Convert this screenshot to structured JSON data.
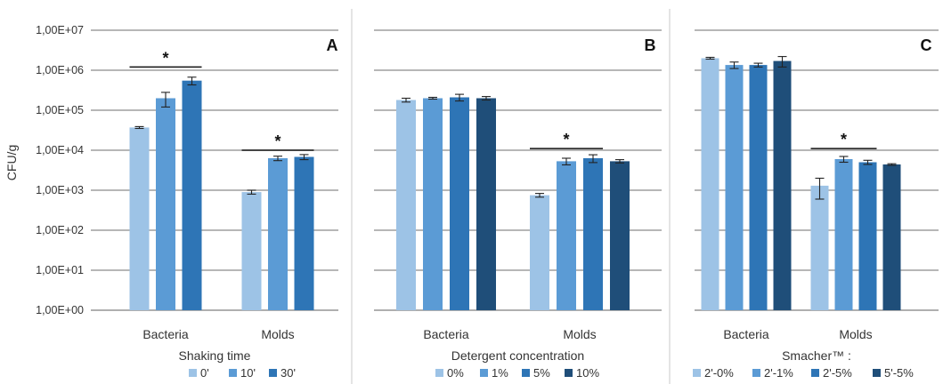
{
  "figure": {
    "ylabel": "CFU/g",
    "y_tick_labels": [
      "1,00E+00",
      "1,00E+01",
      "1,00E+02",
      "1,00E+03",
      "1,00E+04",
      "1,00E+05",
      "1,00E+06",
      "1,00E+07"
    ]
  },
  "chart_data": [
    {
      "type": "bar",
      "panel_label": "A",
      "title": "",
      "xlabel": "",
      "ylabel": "CFU/g",
      "log_y": true,
      "ylim": [
        1,
        10000000
      ],
      "grid": true,
      "categories": [
        "Bacteria",
        "Molds"
      ],
      "legend_title": "Shaking time",
      "legend_placement": "bottom",
      "series": [
        {
          "name": "0'",
          "color": "#9DC3E6",
          "values": [
            37000,
            900
          ],
          "errors": [
            2000,
            100
          ]
        },
        {
          "name": "10'",
          "color": "#5B9BD5",
          "values": [
            200000,
            6300
          ],
          "errors": [
            80000,
            800
          ]
        },
        {
          "name": "30'",
          "color": "#2E75B6",
          "values": [
            550000,
            6800
          ],
          "errors": [
            120000,
            1000
          ]
        }
      ],
      "significance": [
        {
          "category": "Bacteria",
          "label": "*",
          "level": 1200000
        },
        {
          "category": "Molds",
          "label": "*",
          "level": 10000
        }
      ]
    },
    {
      "type": "bar",
      "panel_label": "B",
      "title": "",
      "xlabel": "",
      "ylabel": "",
      "log_y": true,
      "ylim": [
        1,
        10000000
      ],
      "grid": true,
      "categories": [
        "Bacteria",
        "Molds"
      ],
      "legend_title": "Detergent concentration",
      "legend_placement": "bottom",
      "series": [
        {
          "name": "0%",
          "color": "#9DC3E6",
          "values": [
            180000,
            750
          ],
          "errors": [
            20000,
            80
          ]
        },
        {
          "name": "1%",
          "color": "#5B9BD5",
          "values": [
            200000,
            5300
          ],
          "errors": [
            10000,
            1000
          ]
        },
        {
          "name": "5%",
          "color": "#2E75B6",
          "values": [
            210000,
            6300
          ],
          "errors": [
            40000,
            1400
          ]
        },
        {
          "name": "10%",
          "color": "#1F4E79",
          "values": [
            200000,
            5300
          ],
          "errors": [
            20000,
            500
          ]
        }
      ],
      "significance": [
        {
          "category": "Molds",
          "label": "*",
          "level": 11000
        }
      ]
    },
    {
      "type": "bar",
      "panel_label": "C",
      "title": "",
      "xlabel": "",
      "ylabel": "",
      "log_y": true,
      "ylim": [
        1,
        10000000
      ],
      "grid": true,
      "categories": [
        "Bacteria",
        "Molds"
      ],
      "legend_title": "Smacher™ :",
      "legend_placement": "bottom",
      "series": [
        {
          "name": "2'-0%",
          "color": "#9DC3E6",
          "values": [
            2000000,
            1300
          ],
          "errors": [
            100000,
            700
          ]
        },
        {
          "name": "2'-1%",
          "color": "#5B9BD5",
          "values": [
            1350000,
            6000
          ],
          "errors": [
            250000,
            1000
          ]
        },
        {
          "name": "2'-5%",
          "color": "#2E75B6",
          "values": [
            1350000,
            5000
          ],
          "errors": [
            150000,
            600
          ]
        },
        {
          "name": "5'-5%",
          "color": "#1F4E79",
          "values": [
            1700000,
            4400
          ],
          "errors": [
            500000,
            200
          ]
        }
      ],
      "significance": [
        {
          "category": "Molds",
          "label": "*",
          "level": 11000
        }
      ]
    }
  ]
}
